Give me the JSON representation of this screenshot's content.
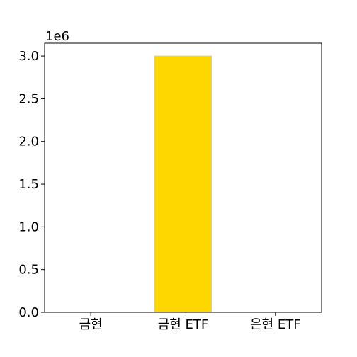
{
  "chart_data": {
    "type": "bar",
    "categories": [
      "금현",
      "금현 ETF",
      "은현 ETF"
    ],
    "values": [
      0,
      3000000,
      0
    ],
    "ylim": [
      0,
      3150000
    ],
    "yticks": [
      0,
      500000,
      1000000,
      1500000,
      2000000,
      2500000,
      3000000
    ],
    "ytick_labels": [
      "0.0",
      "0.5",
      "1.0",
      "1.5",
      "2.0",
      "2.5",
      "3.0"
    ],
    "y_offset_label": "1e6",
    "grid": false,
    "colors": {
      "bar": "#FFD700",
      "bar_edge": "#cccccc",
      "axes": "#000000"
    }
  }
}
